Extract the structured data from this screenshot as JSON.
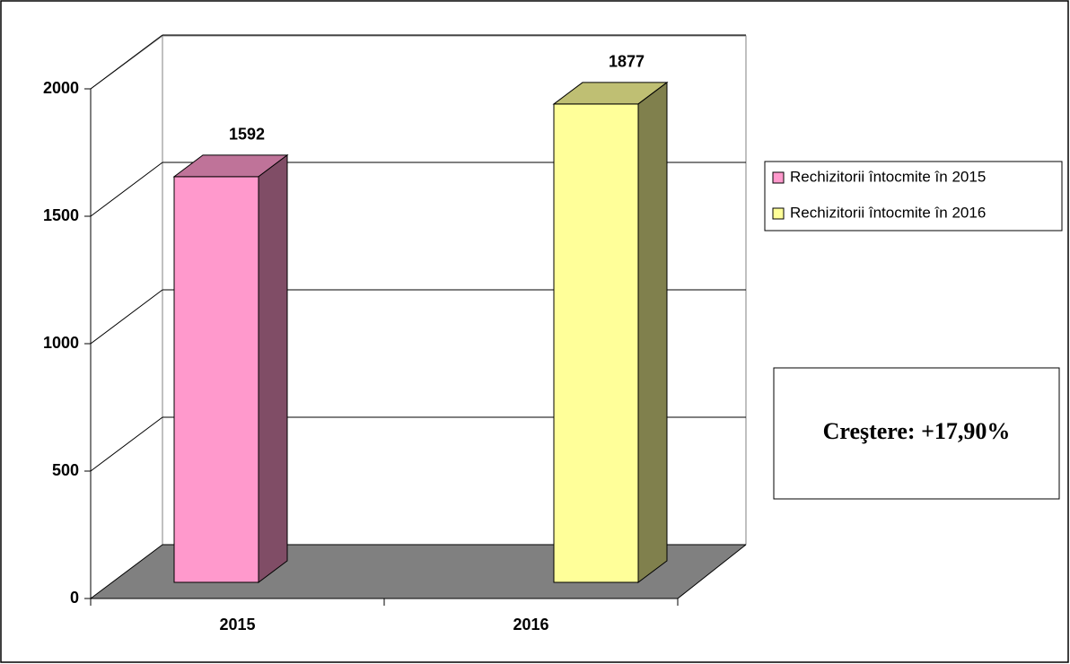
{
  "chart_data": {
    "type": "bar3d",
    "categories": [
      "2015",
      "2016"
    ],
    "series": [
      {
        "name": "Rechizitorii întocmite în 2015",
        "color": "#ff99cc",
        "values": [
          1592,
          null
        ]
      },
      {
        "name": "Rechizitorii întocmite în 2016",
        "color": "#ffff99",
        "values": [
          null,
          1877
        ]
      }
    ],
    "ylim": [
      0,
      2000
    ],
    "yticks": [
      0,
      500,
      1000,
      1500,
      2000
    ],
    "grid": true,
    "legend": "right",
    "annotation": "Creştere: +17,90%"
  }
}
